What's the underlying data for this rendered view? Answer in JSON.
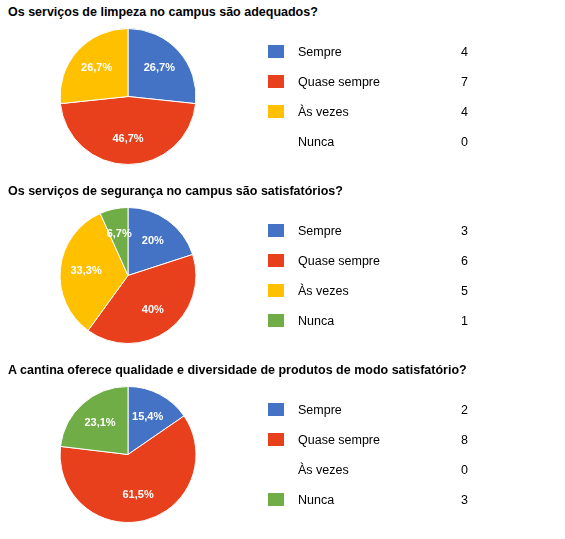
{
  "chart_data": [
    {
      "type": "pie",
      "title": "Os serviços de limpeza no campus são adequados?",
      "categories": [
        "Sempre",
        "Quase sempre",
        "Às vezes",
        "Nunca"
      ],
      "values": [
        26.7,
        46.7,
        26.7,
        null
      ],
      "value_labels": [
        "26,7%",
        "46,7%",
        "26,7%",
        null
      ],
      "counts": [
        4,
        7,
        4,
        0
      ],
      "colors": [
        "#4472C4",
        "#E8401C",
        "#FFC000",
        null
      ],
      "data_labels": true,
      "legend": "right"
    },
    {
      "type": "pie",
      "title": "Os serviços de segurança no campus são satisfatórios?",
      "categories": [
        "Sempre",
        "Quase sempre",
        "Às vezes",
        "Nunca"
      ],
      "values": [
        20,
        40,
        33.3,
        6.7
      ],
      "value_labels": [
        "20%",
        "40%",
        "33,3%",
        "6,7%"
      ],
      "counts": [
        3,
        6,
        5,
        1
      ],
      "colors": [
        "#4472C4",
        "#E8401C",
        "#FFC000",
        "#70AD47"
      ],
      "data_labels": true,
      "legend": "right"
    },
    {
      "type": "pie",
      "title": "A cantina oferece qualidade e diversidade de produtos de modo satisfatório?",
      "categories": [
        "Sempre",
        "Quase sempre",
        "Às vezes",
        "Nunca"
      ],
      "values": [
        15.4,
        61.5,
        null,
        23.1
      ],
      "value_labels": [
        "15,4%",
        "61,5%",
        null,
        "23,1%"
      ],
      "counts": [
        2,
        8,
        0,
        3
      ],
      "colors": [
        "#4472C4",
        "#E8401C",
        null,
        "#70AD47"
      ],
      "data_labels": true,
      "legend": "right"
    }
  ]
}
